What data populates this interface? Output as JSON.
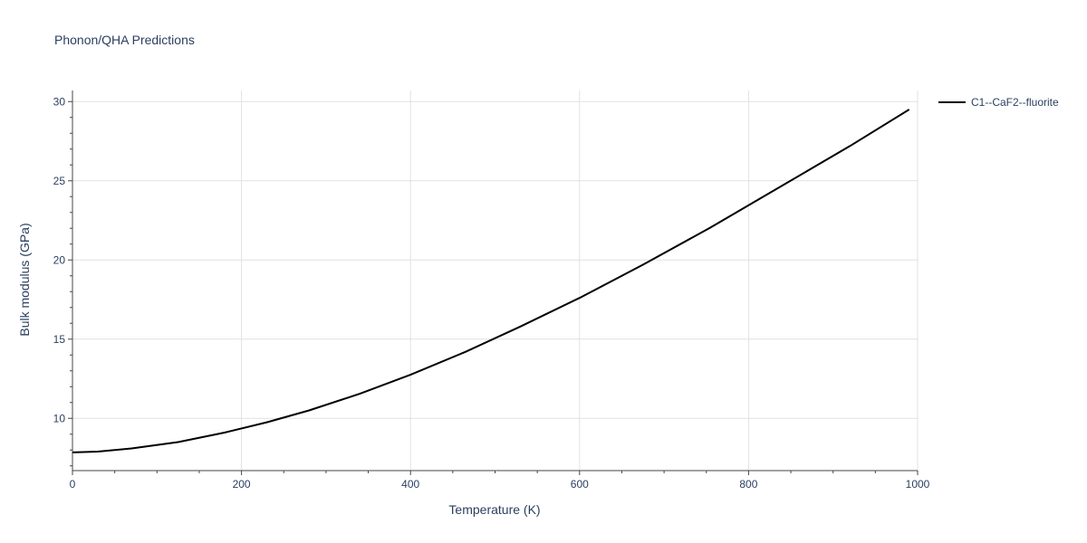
{
  "chart_data": {
    "type": "line",
    "title": "Phonon/QHA Predictions",
    "xlabel": "Temperature (K)",
    "ylabel": "Bulk modulus (GPa)",
    "xlim": [
      0,
      1000
    ],
    "ylim": [
      6.7,
      30.7
    ],
    "x_ticks": [
      0,
      200,
      400,
      600,
      800,
      1000
    ],
    "y_ticks": [
      10,
      15,
      20,
      25,
      30
    ],
    "grid": true,
    "legend_position": "top-right-outside",
    "series": [
      {
        "name": "C1--CaF2--fluorite",
        "color": "#000000",
        "x": [
          0,
          30,
          70,
          125,
          180,
          230,
          280,
          340,
          400,
          465,
          530,
          600,
          675,
          755,
          840,
          920,
          990
        ],
        "y": [
          7.85,
          7.9,
          8.1,
          8.5,
          9.1,
          9.75,
          10.5,
          11.55,
          12.75,
          14.2,
          15.8,
          17.6,
          19.7,
          22.05,
          24.7,
          27.2,
          29.5
        ]
      }
    ]
  }
}
